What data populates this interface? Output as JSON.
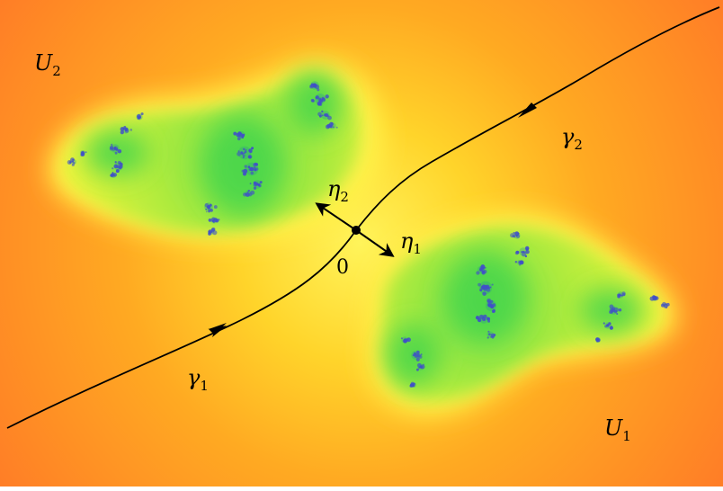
{
  "labels": {
    "U2": {
      "base": "U",
      "sub": "2"
    },
    "U1": {
      "base": "U",
      "sub": "1"
    },
    "gamma1": {
      "base": "γ",
      "sub": "1"
    },
    "gamma2": {
      "base": "γ",
      "sub": "2"
    },
    "eta1": {
      "base": "η",
      "sub": "1"
    },
    "eta2": {
      "base": "η",
      "sub": "2"
    },
    "origin": "0"
  },
  "colors": {
    "background_outer": "#ff7f27",
    "background_mid": "#ffb020",
    "near_set": "#fff02a",
    "interior_light": "#c8ee3a",
    "interior_deep": "#3fd34a",
    "filament": "#4050c8",
    "curve": "#000000"
  }
}
